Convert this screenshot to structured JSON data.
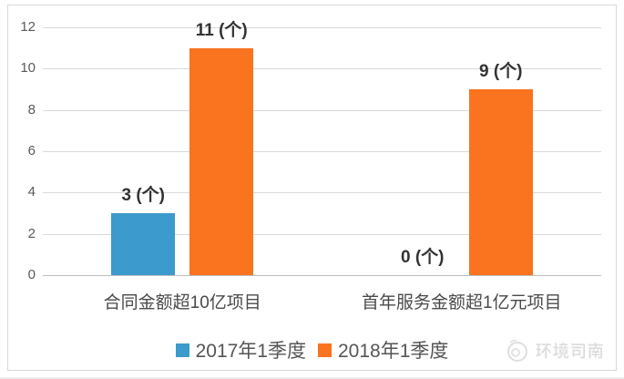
{
  "chart_data": {
    "type": "bar",
    "title": "",
    "categories": [
      "合同金额超10亿项目",
      "首年服务金额超1亿元项目"
    ],
    "series": [
      {
        "name": "2017年1季度",
        "color": "#3C9ACD",
        "values": [
          3,
          0
        ],
        "value_labels": [
          "3 (个)",
          "0 (个)"
        ]
      },
      {
        "name": "2018年1季度",
        "color": "#FA731F",
        "values": [
          11,
          9
        ],
        "value_labels": [
          "11 (个)",
          "9 (个)"
        ]
      }
    ],
    "xlabel": "",
    "ylabel": "",
    "ylim": [
      0,
      12
    ],
    "yticks": [
      0,
      2,
      4,
      6,
      8,
      10,
      12
    ],
    "grid": true,
    "legend_position": "bottom",
    "unit": "个"
  },
  "watermark": {
    "text": "环境司南"
  },
  "colors": {
    "grid": "#d9d9d9",
    "axis": "#bfbfbf",
    "tick_text": "#595959",
    "category_text": "#4a4a4a",
    "value_text": "#333333",
    "legend_text": "#555555",
    "frame_border": "#d9d9d9",
    "watermark": "#d9d9d9"
  }
}
